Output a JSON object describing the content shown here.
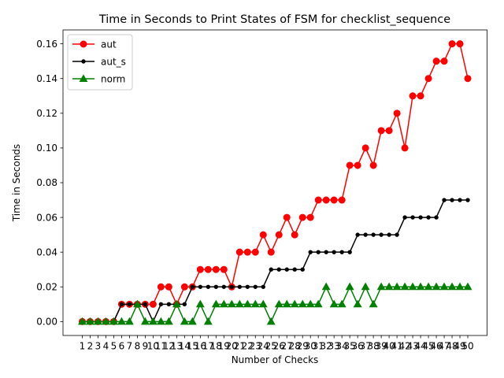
{
  "chart_data": {
    "type": "line",
    "title": "Time in Seconds to Print States of FSM for checklist_sequence",
    "xlabel": "Number of Checks",
    "ylabel": "Time in Seconds",
    "x": [
      1,
      2,
      3,
      4,
      5,
      6,
      7,
      8,
      9,
      10,
      11,
      12,
      13,
      14,
      15,
      16,
      17,
      18,
      19,
      20,
      21,
      22,
      23,
      24,
      25,
      26,
      27,
      28,
      29,
      30,
      31,
      32,
      33,
      34,
      35,
      36,
      37,
      38,
      39,
      40,
      41,
      42,
      43,
      44,
      45,
      46,
      47,
      48,
      49,
      50
    ],
    "xtick_labels": [
      "1",
      "2",
      "3",
      "4",
      "5",
      "6",
      "7",
      "8",
      "9",
      "10",
      "11",
      "12",
      "13",
      "14",
      "15",
      "16",
      "17",
      "18",
      "19",
      "20",
      "21",
      "22",
      "23",
      "24",
      "25",
      "26",
      "27",
      "28",
      "29",
      "30",
      "31",
      "32",
      "33",
      "34",
      "35",
      "36",
      "37",
      "38",
      "39",
      "40",
      "41",
      "42",
      "43",
      "44",
      "45",
      "46",
      "47",
      "48",
      "49",
      "50"
    ],
    "ylim": [
      -0.008,
      0.168
    ],
    "yticks": [
      0.0,
      0.02,
      0.04,
      0.06,
      0.08,
      0.1,
      0.12,
      0.14,
      0.16
    ],
    "ytick_labels": [
      "0.00",
      "0.02",
      "0.04",
      "0.06",
      "0.08",
      "0.10",
      "0.12",
      "0.14",
      "0.16"
    ],
    "grid": false,
    "legend_position": "top-left",
    "series": [
      {
        "name": "aut",
        "color": "#ff0000",
        "marker": "circle",
        "values": [
          0,
          0,
          0,
          0,
          0,
          0.01,
          0.01,
          0.01,
          0.01,
          0.01,
          0.02,
          0.02,
          0.01,
          0.02,
          0.02,
          0.03,
          0.03,
          0.03,
          0.03,
          0.02,
          0.04,
          0.04,
          0.04,
          0.05,
          0.04,
          0.05,
          0.06,
          0.05,
          0.06,
          0.06,
          0.07,
          0.07,
          0.07,
          0.07,
          0.09,
          0.09,
          0.1,
          0.09,
          0.11,
          0.11,
          0.12,
          0.1,
          0.13,
          0.13,
          0.14,
          0.15,
          0.15,
          0.16,
          0.16,
          0.14
        ]
      },
      {
        "name": "aut_s",
        "color": "#000000",
        "marker": "point",
        "values": [
          0,
          0,
          0,
          0,
          0,
          0.01,
          0.01,
          0.01,
          0.01,
          0,
          0.01,
          0.01,
          0.01,
          0.01,
          0.02,
          0.02,
          0.02,
          0.02,
          0.02,
          0.02,
          0.02,
          0.02,
          0.02,
          0.02,
          0.03,
          0.03,
          0.03,
          0.03,
          0.03,
          0.04,
          0.04,
          0.04,
          0.04,
          0.04,
          0.04,
          0.05,
          0.05,
          0.05,
          0.05,
          0.05,
          0.05,
          0.06,
          0.06,
          0.06,
          0.06,
          0.06,
          0.07,
          0.07,
          0.07,
          0.07
        ]
      },
      {
        "name": "norm",
        "color": "#008000",
        "marker": "triangle",
        "values": [
          0,
          0,
          0,
          0,
          0,
          0,
          0,
          0.01,
          0,
          0,
          0,
          0,
          0.01,
          0,
          0,
          0.01,
          0,
          0.01,
          0.01,
          0.01,
          0.01,
          0.01,
          0.01,
          0.01,
          0,
          0.01,
          0.01,
          0.01,
          0.01,
          0.01,
          0.01,
          0.02,
          0.01,
          0.01,
          0.02,
          0.01,
          0.02,
          0.01,
          0.02,
          0.02,
          0.02,
          0.02,
          0.02,
          0.02,
          0.02,
          0.02,
          0.02,
          0.02,
          0.02,
          0.02
        ]
      }
    ]
  }
}
